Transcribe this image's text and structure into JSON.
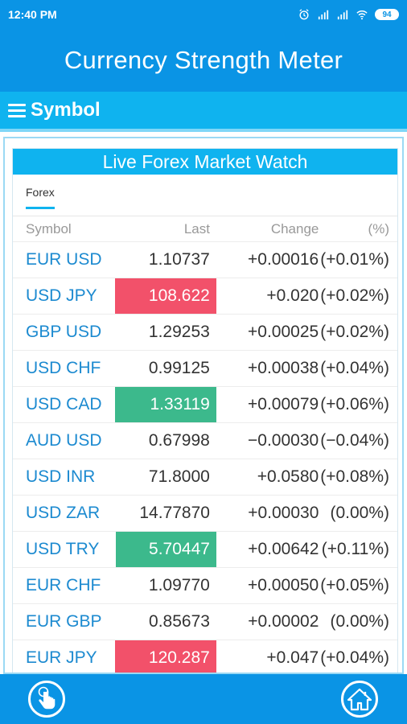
{
  "status_bar": {
    "time": "12:40 PM",
    "battery": "94",
    "icons": [
      "alarm-icon",
      "signal-icon",
      "signal-icon",
      "wifi-icon",
      "battery-icon"
    ]
  },
  "app": {
    "title": "Currency Strength Meter"
  },
  "toolbar": {
    "menu_icon": "hamburger-menu-icon",
    "label": "Symbol"
  },
  "card": {
    "title": "Live Forex Market Watch",
    "tab": "Forex"
  },
  "table": {
    "headers": {
      "symbol": "Symbol",
      "last": "Last",
      "change": "Change",
      "pct": "(%)"
    },
    "rows": [
      {
        "symbol": "EUR USD",
        "last": "1.10737",
        "change": "+0.00016",
        "pct": "(+0.01%)",
        "highlight": "none"
      },
      {
        "symbol": "USD JPY",
        "last": "108.622",
        "change": "+0.020",
        "pct": "(+0.02%)",
        "highlight": "down"
      },
      {
        "symbol": "GBP USD",
        "last": "1.29253",
        "change": "+0.00025",
        "pct": "(+0.02%)",
        "highlight": "none"
      },
      {
        "symbol": "USD CHF",
        "last": "0.99125",
        "change": "+0.00038",
        "pct": "(+0.04%)",
        "highlight": "none"
      },
      {
        "symbol": "USD CAD",
        "last": "1.33119",
        "change": "+0.00079",
        "pct": "(+0.06%)",
        "highlight": "up"
      },
      {
        "symbol": "AUD USD",
        "last": "0.67998",
        "change": "−0.00030",
        "pct": "(−0.04%)",
        "highlight": "none"
      },
      {
        "symbol": "USD INR",
        "last": "71.8000",
        "change": "+0.0580",
        "pct": "(+0.08%)",
        "highlight": "none"
      },
      {
        "symbol": "USD ZAR",
        "last": "14.77870",
        "change": "+0.00030",
        "pct": "(0.00%)",
        "highlight": "none"
      },
      {
        "symbol": "USD TRY",
        "last": "5.70447",
        "change": "+0.00642",
        "pct": "(+0.11%)",
        "highlight": "up"
      },
      {
        "symbol": "EUR CHF",
        "last": "1.09770",
        "change": "+0.00050",
        "pct": "(+0.05%)",
        "highlight": "none"
      },
      {
        "symbol": "EUR GBP",
        "last": "0.85673",
        "change": "+0.00002",
        "pct": "(0.00%)",
        "highlight": "none"
      },
      {
        "symbol": "EUR JPY",
        "last": "120.287",
        "change": "+0.047",
        "pct": "(+0.04%)",
        "highlight": "down"
      }
    ]
  },
  "bottom_bar": {
    "left_icon": "touch-hand-icon",
    "right_icon": "home-icon"
  },
  "colors": {
    "primary": "#0a94e5",
    "accent": "#0fb3ef",
    "up": "#3cb98c",
    "down": "#f2516a",
    "symbol_text": "#1c8ad0"
  }
}
